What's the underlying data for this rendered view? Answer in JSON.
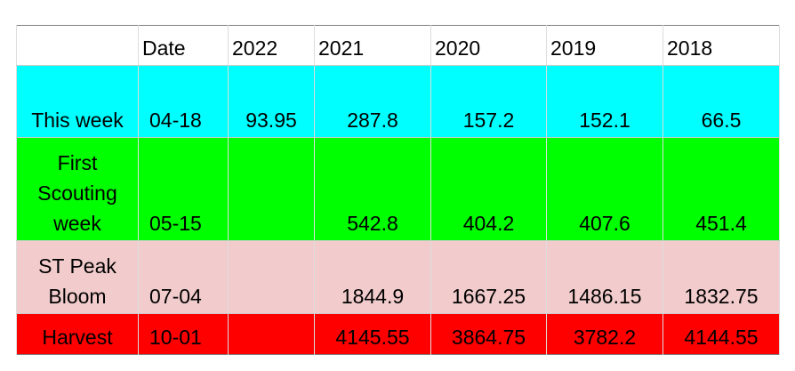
{
  "table": {
    "header": [
      null,
      "Date",
      "2022",
      "2021",
      "2020",
      "2019",
      "2018"
    ],
    "rows": [
      [
        "This week",
        "04-18",
        93.95,
        287.8,
        157.2,
        152.1,
        66.5
      ],
      [
        "First Scouting week",
        "05-15",
        null,
        542.8,
        404.2,
        407.6,
        451.4
      ],
      [
        "ST Peak Bloom",
        "07-04",
        null,
        1844.9,
        1667.25,
        1486.15,
        1832.75
      ],
      [
        "Harvest",
        "10-01",
        null,
        4145.55,
        3864.75,
        3782.2,
        4144.55
      ]
    ]
  }
}
